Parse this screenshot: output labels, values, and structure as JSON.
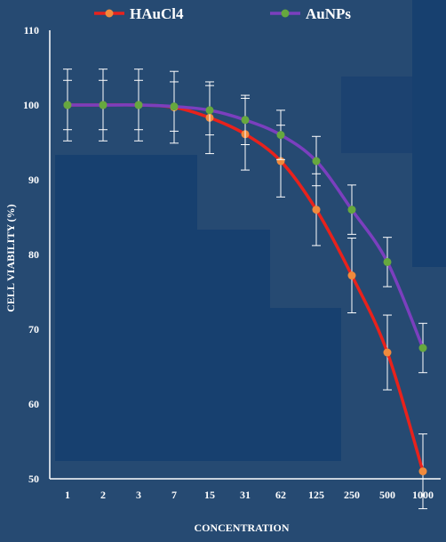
{
  "chart_data": {
    "type": "line",
    "title": "",
    "xlabel": "CONCENTRATION",
    "ylabel": "CELL VIABILITY (%)",
    "categories": [
      "1",
      "2",
      "3",
      "7",
      "15",
      "31",
      "62",
      "125",
      "250",
      "500",
      "1000"
    ],
    "ylim": [
      50,
      110
    ],
    "yticks": [
      "50",
      "60",
      "70",
      "80",
      "90",
      "100",
      "110"
    ],
    "grid": false,
    "legend_position": "top",
    "series": [
      {
        "name": "HAuCl4",
        "color": "#e8221c",
        "marker_color": "#f08a3c",
        "values": [
          100,
          100,
          100,
          99.7,
          98.3,
          96.1,
          92.5,
          86.0,
          77.2,
          66.9,
          51.0
        ],
        "errors": [
          4.8,
          4.8,
          4.8,
          4.8,
          4.8,
          4.8,
          4.8,
          4.8,
          5.0,
          5.0,
          5.0
        ]
      },
      {
        "name": "AuNPs",
        "color": "#7b3fbe",
        "marker_color": "#66a83e",
        "values": [
          100,
          100,
          100,
          99.8,
          99.3,
          98.0,
          96.0,
          92.5,
          86.0,
          79.0,
          67.5
        ],
        "errors": [
          3.3,
          3.3,
          3.3,
          3.3,
          3.3,
          3.3,
          3.3,
          3.3,
          3.3,
          3.3,
          3.3
        ]
      }
    ]
  }
}
